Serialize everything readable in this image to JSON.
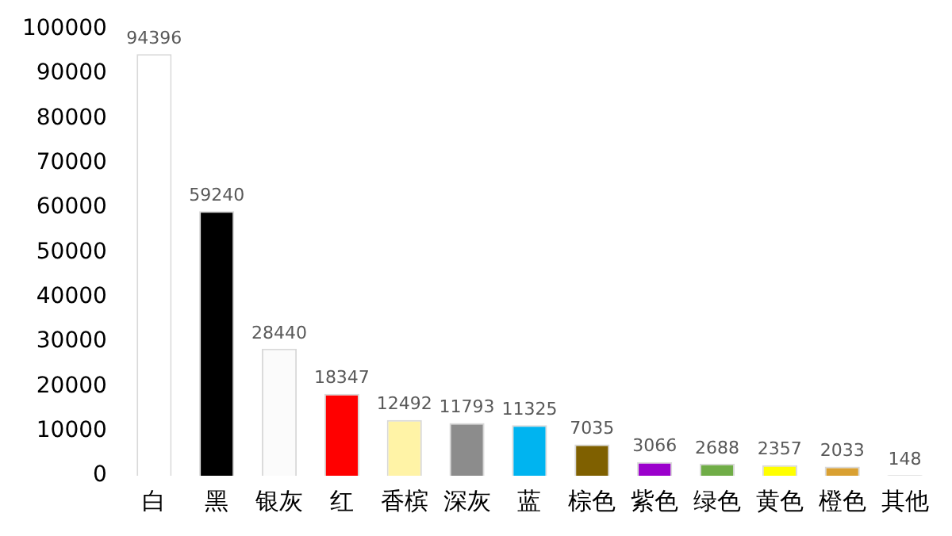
{
  "chart_data": {
    "type": "bar",
    "categories": [
      "白",
      "黑",
      "银灰",
      "红",
      "香槟",
      "深灰",
      "蓝",
      "棕色",
      "紫色",
      "绿色",
      "黄色",
      "橙色",
      "其他"
    ],
    "values": [
      94396,
      59240,
      28440,
      18347,
      12492,
      11793,
      11325,
      7035,
      3066,
      2688,
      2357,
      2033,
      148
    ],
    "colors": [
      "#ffffff",
      "#000000",
      "#fbfbfb",
      "#ff0000",
      "#fff3a6",
      "#8c8c8c",
      "#00b4f0",
      "#7f6000",
      "#9b00cc",
      "#70ad47",
      "#ffff00",
      "#d9a032",
      "#bfbfbf"
    ],
    "ylim": [
      0,
      100000
    ],
    "yticks": [
      0,
      10000,
      20000,
      30000,
      40000,
      50000,
      60000,
      70000,
      80000,
      90000,
      100000
    ],
    "grid": false,
    "legend": false,
    "data_labels": true
  }
}
